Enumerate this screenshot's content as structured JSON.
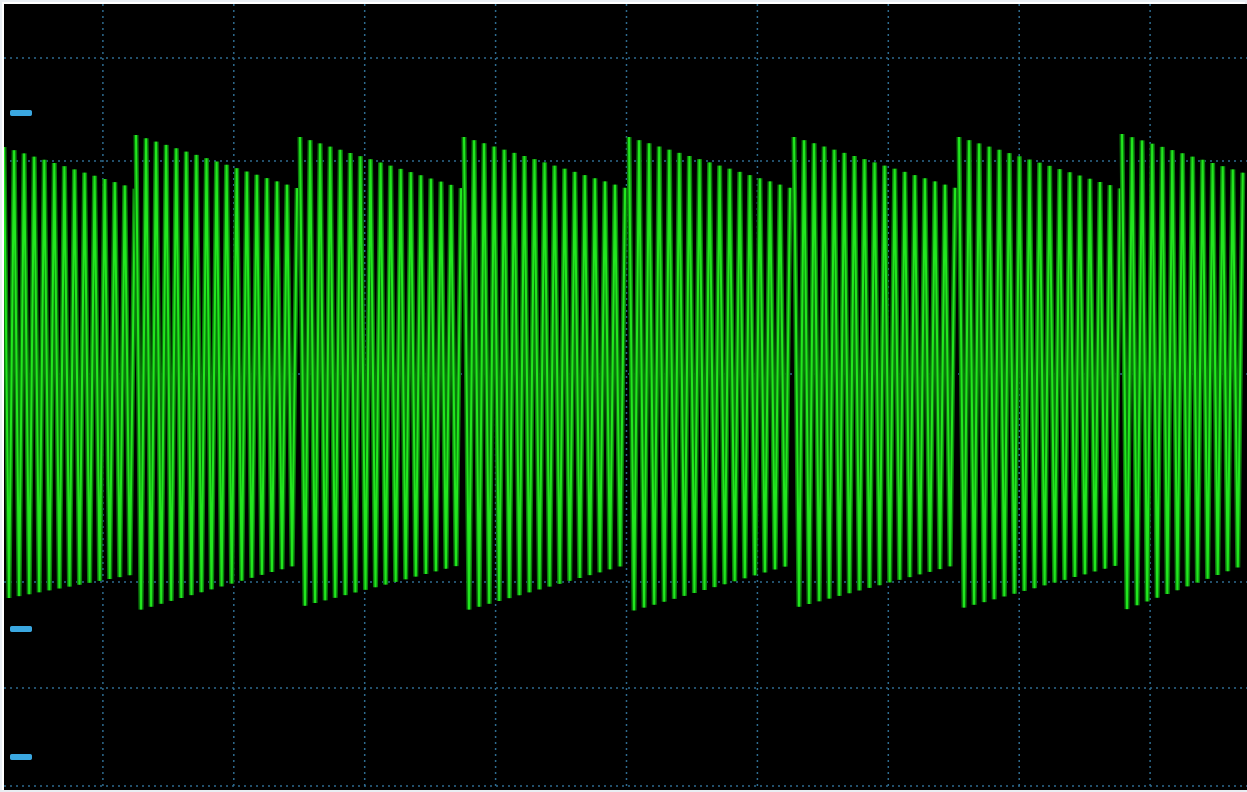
{
  "colors": {
    "screen_background": "#000000",
    "grid": "#2e6b8f",
    "trace": "#22e61f",
    "trace_dark": "#0a7a0a",
    "marker": "#3aa7e0"
  },
  "chart_data": {
    "type": "line",
    "title": "",
    "xlabel": "",
    "ylabel": "",
    "grid": true,
    "grid_divisions": {
      "x": 9.5,
      "y": 6
    },
    "xlim": [
      0,
      9.5
    ],
    "ylim": [
      -3,
      3
    ],
    "series": [
      {
        "style": "modulated-oscillation",
        "segment_starts": [
          0,
          1.0,
          2.25,
          3.5,
          4.75,
          6.0,
          7.25,
          8.5
        ],
        "segment_period_div": 1.25,
        "carrier_cycles_per_div": 13,
        "envelope_upper": {
          "segment_start": 1.75,
          "segment_end": 1.45
        },
        "envelope_lower": {
          "segment_start": -1.82,
          "segment_end": -1.55
        },
        "center_level": 0.1
      }
    ],
    "left_markers": [
      {
        "name": "marker-top",
        "y": 2.0
      },
      {
        "name": "marker-middle",
        "y": -1.95
      },
      {
        "name": "marker-bottom",
        "y": -2.95
      }
    ]
  }
}
